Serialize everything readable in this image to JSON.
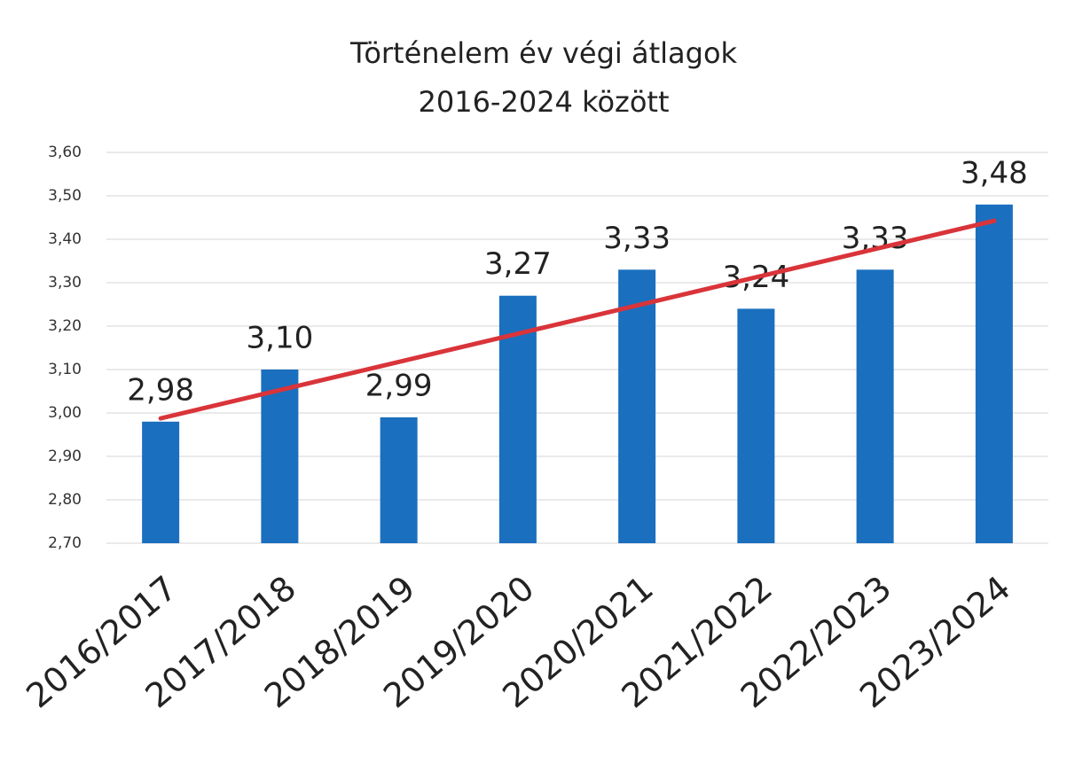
{
  "chart_data": {
    "type": "bar",
    "title": [
      "Történelem év végi átlagok",
      "2016-2024 között"
    ],
    "categories": [
      "2016/2017",
      "2017/2018",
      "2018/2019",
      "2019/2020",
      "2020/2021",
      "2021/2022",
      "2022/2023",
      "2023/2024"
    ],
    "values": [
      2.98,
      3.1,
      2.99,
      3.27,
      3.33,
      3.24,
      3.33,
      3.48
    ],
    "value_labels": [
      "2,98",
      "3,10",
      "2,99",
      "3,27",
      "3,33",
      "3,24",
      "3,33",
      "3,48"
    ],
    "color": "#1b6fbf",
    "ylim": [
      2.7,
      3.6
    ],
    "yticks": [
      {
        "value": 2.7,
        "label": "2,70"
      },
      {
        "value": 2.8,
        "label": "2,80"
      },
      {
        "value": 2.9,
        "label": "2,90"
      },
      {
        "value": 3.0,
        "label": "3,00"
      },
      {
        "value": 3.1,
        "label": "3,10"
      },
      {
        "value": 3.2,
        "label": "3,20"
      },
      {
        "value": 3.3,
        "label": "3,30"
      },
      {
        "value": 3.4,
        "label": "3,40"
      },
      {
        "value": 3.5,
        "label": "3,50"
      },
      {
        "value": 3.6,
        "label": "3,60"
      }
    ],
    "grid": true,
    "trendline": "linear",
    "trendline_color": "#d9343a"
  }
}
